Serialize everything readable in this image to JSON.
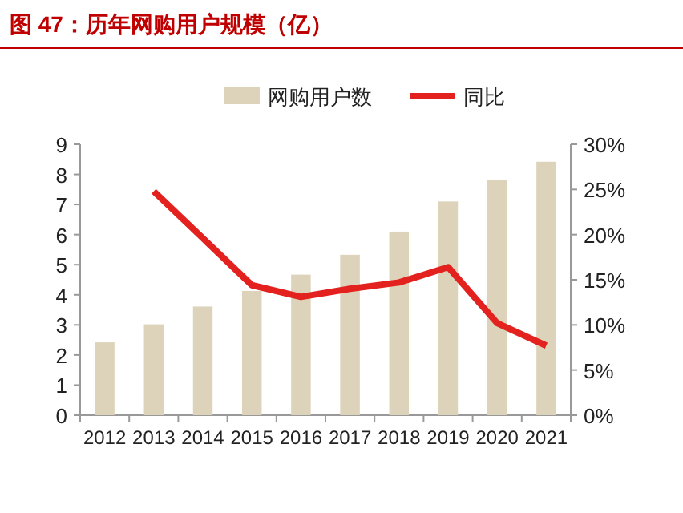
{
  "chart_data": {
    "type": "bar",
    "title": "图 47：历年网购用户规模（亿）",
    "categories": [
      "2012",
      "2013",
      "2014",
      "2015",
      "2016",
      "2017",
      "2018",
      "2019",
      "2020",
      "2021"
    ],
    "series": [
      {
        "name": "网购用户数",
        "color": "#ddd3bb",
        "values": [
          2.42,
          3.02,
          3.61,
          4.13,
          4.67,
          5.33,
          6.1,
          7.1,
          7.82,
          8.42
        ]
      },
      {
        "name": "同比",
        "type": "line",
        "axis": "y2",
        "color": "#e3211e",
        "values": [
          null,
          24.8,
          19.6,
          14.4,
          13.1,
          14.0,
          14.7,
          16.4,
          10.2,
          7.7
        ]
      }
    ],
    "ylim": [
      0,
      9
    ],
    "yticks": [
      0,
      1,
      2,
      3,
      4,
      5,
      6,
      7,
      8,
      9
    ],
    "y2lim": [
      0,
      30
    ],
    "y2ticks": [
      {
        "value": 0,
        "label": "0%"
      },
      {
        "value": 5,
        "label": "5%"
      },
      {
        "value": 10,
        "label": "10%"
      },
      {
        "value": 15,
        "label": "15%"
      },
      {
        "value": 20,
        "label": "20%"
      },
      {
        "value": 25,
        "label": "25%"
      },
      {
        "value": 30,
        "label": "30%"
      }
    ],
    "legend": "top",
    "grid": false,
    "marker": "none",
    "line_style": "solid"
  }
}
